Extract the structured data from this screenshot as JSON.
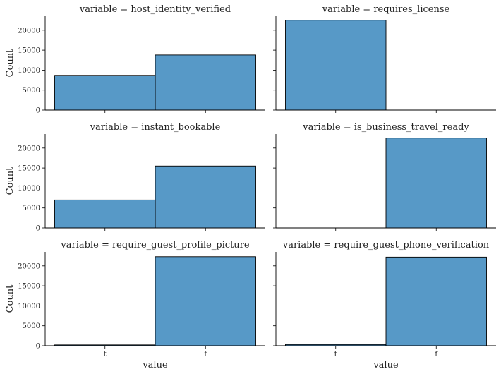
{
  "chart_data": {
    "type": "bar",
    "layout": "facet-grid 3x2, shared x and y axes",
    "categories": [
      "t",
      "f"
    ],
    "xlabel": "value",
    "ylabel": "Count",
    "ylim": [
      0,
      23500
    ],
    "yticks": [
      0,
      5000,
      10000,
      15000,
      20000
    ],
    "bar_color": "#5799c7",
    "panels": [
      {
        "title": "variable = host_identity_verified",
        "values": [
          8700,
          13800
        ]
      },
      {
        "title": "variable = requires_license",
        "values": [
          22500,
          0
        ]
      },
      {
        "title": "variable = instant_bookable",
        "values": [
          7000,
          15500
        ]
      },
      {
        "title": "variable = is_business_travel_ready",
        "values": [
          0,
          22500
        ]
      },
      {
        "title": "variable = require_guest_profile_picture",
        "values": [
          200,
          22300
        ]
      },
      {
        "title": "variable = require_guest_phone_verification",
        "values": [
          300,
          22200
        ]
      }
    ]
  }
}
